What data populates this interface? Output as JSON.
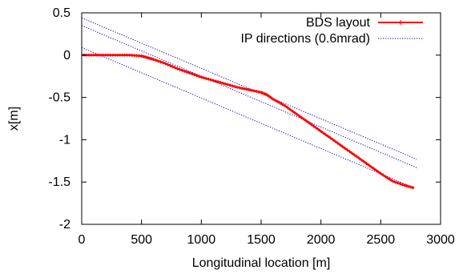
{
  "chart_data": {
    "type": "line",
    "xlabel": "Longitudinal location [m]",
    "ylabel": "x[m]",
    "xlim": [
      0,
      3000
    ],
    "ylim": [
      -2,
      0.5
    ],
    "xticks": [
      0,
      500,
      1000,
      1500,
      2000,
      2500,
      3000
    ],
    "yticks": [
      0.5,
      0,
      -0.5,
      -1,
      -1.5,
      -2
    ],
    "xtick_labels": [
      "0",
      "500",
      "1000",
      "1500",
      "2000",
      "2500",
      "3000"
    ],
    "ytick_labels": [
      "0.5",
      "0",
      "-0.5",
      "-1",
      "-1.5",
      "-2"
    ],
    "grid": false,
    "legend": "top-right",
    "series": [
      {
        "name": "BDS layout",
        "color": "#ff0000",
        "style": "line-with-points",
        "x": [
          0,
          100,
          200,
          300,
          400,
          500,
          550,
          600,
          700,
          800,
          900,
          1000,
          1100,
          1200,
          1300,
          1400,
          1500,
          1550,
          1600,
          1700,
          1800,
          1900,
          2000,
          2100,
          2200,
          2300,
          2400,
          2500,
          2600,
          2700,
          2780
        ],
        "y": [
          0.0,
          0.0,
          0.0,
          0.0,
          0.0,
          -0.01,
          -0.03,
          -0.05,
          -0.1,
          -0.16,
          -0.21,
          -0.26,
          -0.3,
          -0.34,
          -0.38,
          -0.41,
          -0.44,
          -0.47,
          -0.52,
          -0.6,
          -0.7,
          -0.8,
          -0.9,
          -1.0,
          -1.1,
          -1.2,
          -1.3,
          -1.4,
          -1.49,
          -1.54,
          -1.57
        ]
      },
      {
        "name": "IP directions (0.6mrad)",
        "color": "#0000cc",
        "style": "dotted",
        "lines": [
          {
            "x": [
              0,
              2800
            ],
            "y": [
              0.44,
              -1.23
            ]
          },
          {
            "x": [
              0,
              2800
            ],
            "y": [
              0.35,
              -1.33
            ]
          },
          {
            "x": [
              0,
              2780
            ],
            "y": [
              0.09,
              -1.57
            ]
          }
        ]
      }
    ]
  }
}
